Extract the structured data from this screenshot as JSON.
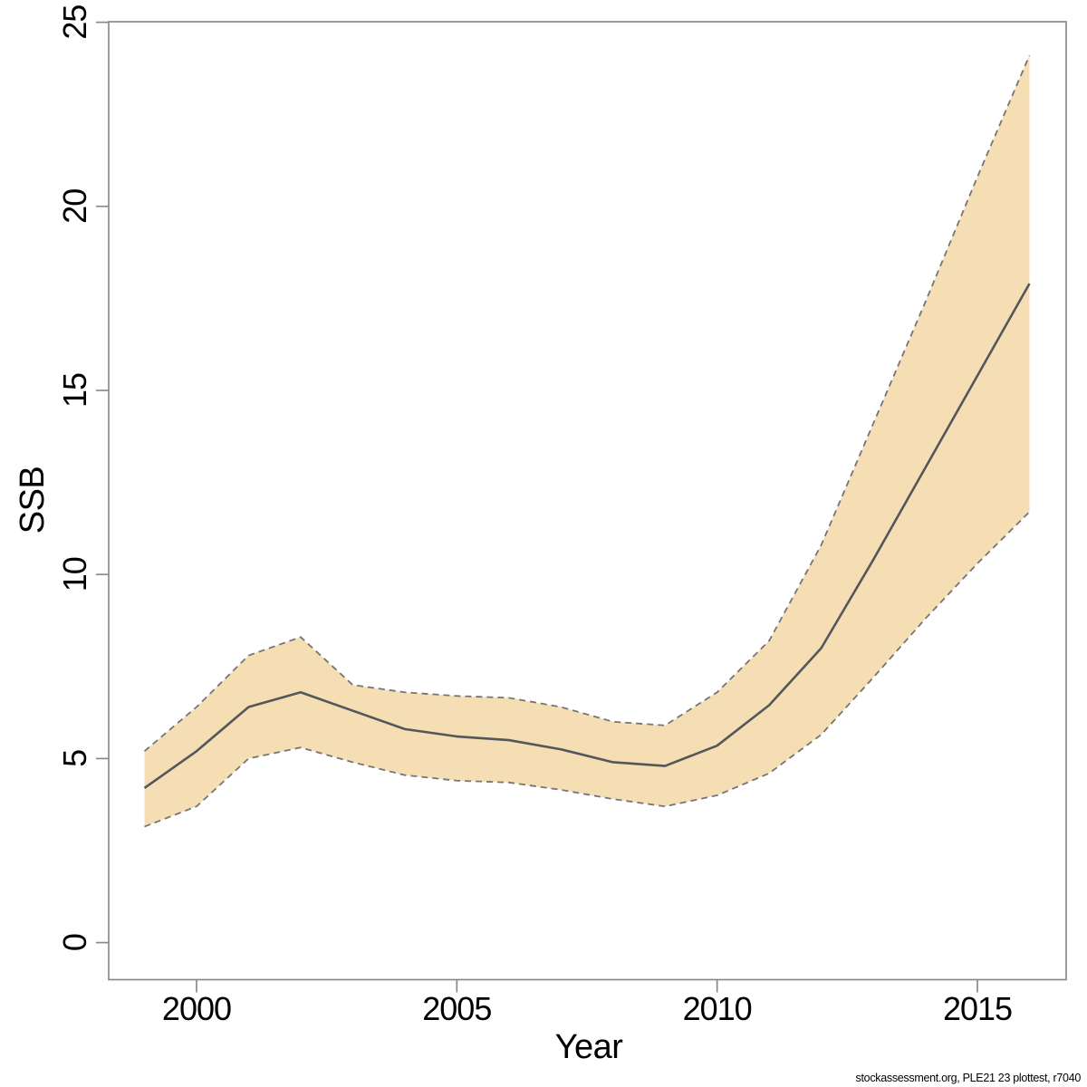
{
  "page": {
    "background": "#ffffff"
  },
  "footer": {
    "credit": "stockassessment.org, PLE21 23 plottest, r7040"
  },
  "chart_data": {
    "type": "line",
    "title": "",
    "xlabel": "Year",
    "ylabel": "SSB",
    "x": [
      1999,
      2000,
      2001,
      2002,
      2003,
      2004,
      2005,
      2006,
      2007,
      2008,
      2009,
      2010,
      2011,
      2012,
      2013,
      2014,
      2015,
      2016
    ],
    "series": [
      {
        "name": "SSB estimate",
        "style": "solid",
        "values": [
          4.2,
          5.2,
          6.4,
          6.8,
          6.3,
          5.8,
          5.6,
          5.5,
          5.25,
          4.9,
          4.8,
          5.35,
          6.45,
          8.0,
          10.4,
          12.9,
          15.4,
          17.9
        ]
      },
      {
        "name": "lower confidence bound",
        "style": "dashed",
        "values": [
          3.15,
          3.7,
          5.0,
          5.3,
          4.9,
          4.55,
          4.4,
          4.35,
          4.15,
          3.9,
          3.7,
          4.0,
          4.6,
          5.65,
          7.2,
          8.8,
          10.3,
          11.7
        ]
      },
      {
        "name": "upper confidence bound",
        "style": "dashed",
        "values": [
          5.2,
          6.4,
          7.8,
          8.3,
          7.0,
          6.8,
          6.7,
          6.65,
          6.4,
          6.0,
          5.9,
          6.8,
          8.2,
          10.8,
          14.1,
          17.4,
          20.8,
          24.1
        ]
      }
    ],
    "x_ticks": [
      2000,
      2005,
      2010,
      2015
    ],
    "y_ticks": [
      0,
      5,
      10,
      15,
      20,
      25
    ],
    "xlim": [
      1999,
      2016
    ],
    "ylim": [
      0,
      25
    ],
    "grid": false,
    "legend": "none",
    "colors": {
      "band_fill": "#f5deb3",
      "estimate_line": "#53575c",
      "ci_line": "#757575",
      "axis": "#8a8a8a",
      "text": "#000000"
    }
  }
}
